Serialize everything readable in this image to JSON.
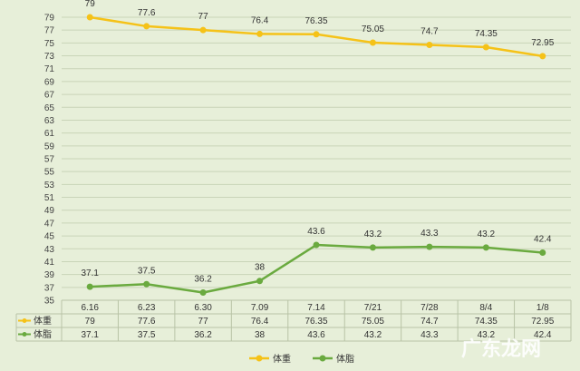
{
  "chart_data": {
    "type": "line",
    "categories": [
      "6.16",
      "6.23",
      "6.30",
      "7.09",
      "7.14",
      "7/21",
      "7/28",
      "8/4",
      "1/8"
    ],
    "series": [
      {
        "name": "体重",
        "color": "#f5c218",
        "values": [
          79,
          77.6,
          77,
          76.4,
          76.35,
          75.05,
          74.7,
          74.35,
          72.95
        ],
        "labels": [
          "79",
          "77.6",
          "77",
          "76.4",
          "76.35",
          "75.05",
          "74.7",
          "74.35",
          "72.95"
        ]
      },
      {
        "name": "体脂",
        "color": "#6aaa3f",
        "values": [
          37.1,
          37.5,
          36.2,
          38,
          43.6,
          43.2,
          43.3,
          43.2,
          42.4
        ],
        "labels": [
          "37.1",
          "37.5",
          "36.2",
          "38",
          "43.6",
          "43.2",
          "43.3",
          "43.2",
          "42.4"
        ]
      }
    ],
    "yticks": [
      "35",
      "37",
      "39",
      "41",
      "43",
      "45",
      "47",
      "49",
      "51",
      "53",
      "55",
      "57",
      "59",
      "61",
      "63",
      "65",
      "67",
      "69",
      "71",
      "73",
      "75",
      "77",
      "79"
    ],
    "ylim": [
      35,
      80
    ],
    "grid": "horizontal",
    "legend_position": "bottom",
    "data_table": true
  },
  "watermark": "广东龙网"
}
